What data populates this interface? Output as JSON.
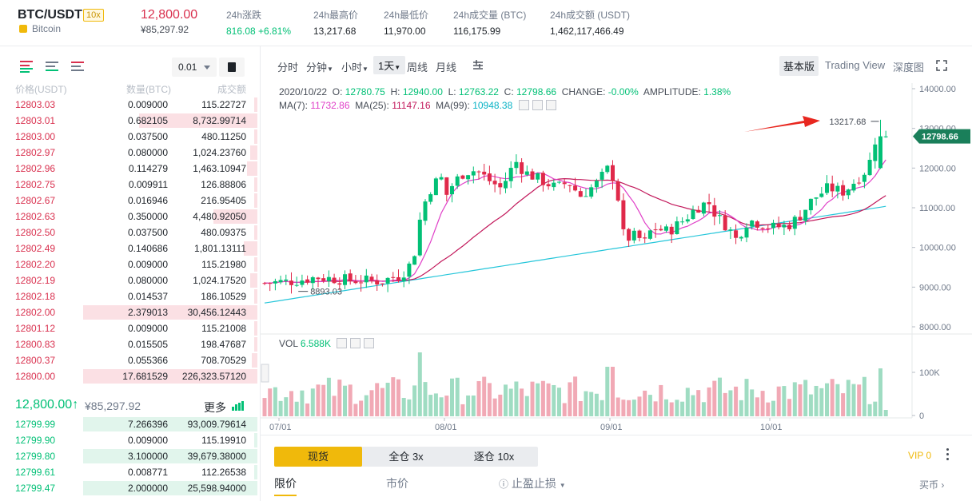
{
  "header": {
    "pair": "BTC/USDT",
    "leverage": "10x",
    "coin_name": "Bitcoin",
    "last_price": "12,800.00",
    "last_price_cny": "¥85,297.92",
    "stats": [
      {
        "label": "24h涨跌",
        "value": "816.08 +6.81%"
      },
      {
        "label": "24h最高价",
        "value": "13,217.68"
      },
      {
        "label": "24h最低价",
        "value": "11,970.00"
      },
      {
        "label": "24h成交量 (BTC)",
        "value": "116,175.99"
      },
      {
        "label": "24h成交额 (USDT)",
        "value": "1,462,117,466.49"
      }
    ]
  },
  "orderbook": {
    "precision": "0.01",
    "columns": [
      "价格(USDT)",
      "数量(BTC)",
      "成交额"
    ],
    "asks": [
      {
        "price": "12803.03",
        "qty": "0.009000",
        "total": "115.22727",
        "depth": 0.02
      },
      {
        "price": "12803.01",
        "qty": "0.682105",
        "total": "8,732.99714",
        "depth": 0.68
      },
      {
        "price": "12803.00",
        "qty": "0.037500",
        "total": "480.11250",
        "depth": 0.02
      },
      {
        "price": "12802.97",
        "qty": "0.080000",
        "total": "1,024.23760",
        "depth": 0.04
      },
      {
        "price": "12802.96",
        "qty": "0.114279",
        "total": "1,463.10947",
        "depth": 0.06
      },
      {
        "price": "12802.75",
        "qty": "0.009911",
        "total": "126.88806",
        "depth": 0.02
      },
      {
        "price": "12802.67",
        "qty": "0.016946",
        "total": "216.95405",
        "depth": 0.02
      },
      {
        "price": "12802.63",
        "qty": "0.350000",
        "total": "4,480.92050",
        "depth": 0.25
      },
      {
        "price": "12802.50",
        "qty": "0.037500",
        "total": "480.09375",
        "depth": 0.02
      },
      {
        "price": "12802.49",
        "qty": "0.140686",
        "total": "1,801.13111",
        "depth": 0.08
      },
      {
        "price": "12802.20",
        "qty": "0.009000",
        "total": "115.21980",
        "depth": 0.02
      },
      {
        "price": "12802.19",
        "qty": "0.080000",
        "total": "1,024.17520",
        "depth": 0.04
      },
      {
        "price": "12802.18",
        "qty": "0.014537",
        "total": "186.10529",
        "depth": 0.02
      },
      {
        "price": "12802.00",
        "qty": "2.379013",
        "total": "30,456.12443",
        "depth": 1.0
      },
      {
        "price": "12801.12",
        "qty": "0.009000",
        "total": "115.21008",
        "depth": 0.02
      },
      {
        "price": "12800.83",
        "qty": "0.015505",
        "total": "198.47687",
        "depth": 0.02
      },
      {
        "price": "12800.37",
        "qty": "0.055366",
        "total": "708.70529",
        "depth": 0.03
      },
      {
        "price": "12800.00",
        "qty": "17.681529",
        "total": "226,323.57120",
        "depth": 1.0
      }
    ],
    "mid_price": "12,800.00",
    "mid_arrow": "↑",
    "mid_cny": "¥85,297.92",
    "more_label": "更多",
    "bids": [
      {
        "price": "12799.99",
        "qty": "7.266396",
        "total": "93,009.79614",
        "depth": 1.0
      },
      {
        "price": "12799.90",
        "qty": "0.009000",
        "total": "115.19910",
        "depth": 0.02
      },
      {
        "price": "12799.80",
        "qty": "3.100000",
        "total": "39,679.38000",
        "depth": 1.0
      },
      {
        "price": "12799.61",
        "qty": "0.008771",
        "total": "112.26538",
        "depth": 0.02
      },
      {
        "price": "12799.47",
        "qty": "2.000000",
        "total": "25,598.94000",
        "depth": 1.0
      }
    ]
  },
  "chart_toolbar": {
    "timeframes": [
      "分时",
      "分钟",
      "小时",
      "1天",
      "周线",
      "月线"
    ],
    "active_timeframe": "1天",
    "views": [
      "基本版",
      "Trading View",
      "深度图"
    ],
    "active_view": "基本版"
  },
  "ohlc": {
    "date": "2020/10/22",
    "o_label": "O:",
    "o": "12780.75",
    "h_label": "H:",
    "h": "12940.00",
    "l_label": "L:",
    "l": "12763.22",
    "c_label": "C:",
    "c": "12798.66",
    "change_label": "CHANGE:",
    "change": "-0.00%",
    "amplitude_label": "AMPLITUDE:",
    "amplitude": "1.38%",
    "ma7_label": "MA(7):",
    "ma7": "11732.86",
    "ma25_label": "MA(25):",
    "ma25": "11147.16",
    "ma99_label": "MA(99):",
    "ma99": "10948.38",
    "vol_label": "VOL",
    "vol": "6.588K"
  },
  "chart_data": {
    "type": "candlestick",
    "y_ticks": [
      "14000.00",
      "13000.00",
      "12000.00",
      "11000.00",
      "10000.00",
      "9000.00",
      "8000.00"
    ],
    "ylim": [
      8000,
      14000
    ],
    "x_ticks": [
      "07/01",
      "08/01",
      "09/01",
      "10/01"
    ],
    "vol_ticks": [
      "100K",
      "0"
    ],
    "high_annotation": "13217.68",
    "low_annotation": "8893.03",
    "current_price_label": "12798.66",
    "colors": {
      "up": "#02c076",
      "down": "#e0294a",
      "ma7": "#e040c8",
      "ma25": "#c2185b",
      "ma99": "#26c6da"
    }
  },
  "trade": {
    "modes": [
      "现货",
      "全仓 3x",
      "逐仓 10x"
    ],
    "active_mode": "现货",
    "vip": "VIP 0",
    "order_types": [
      "限价",
      "市价",
      "止盈止损"
    ],
    "buy_coin": "买币"
  }
}
